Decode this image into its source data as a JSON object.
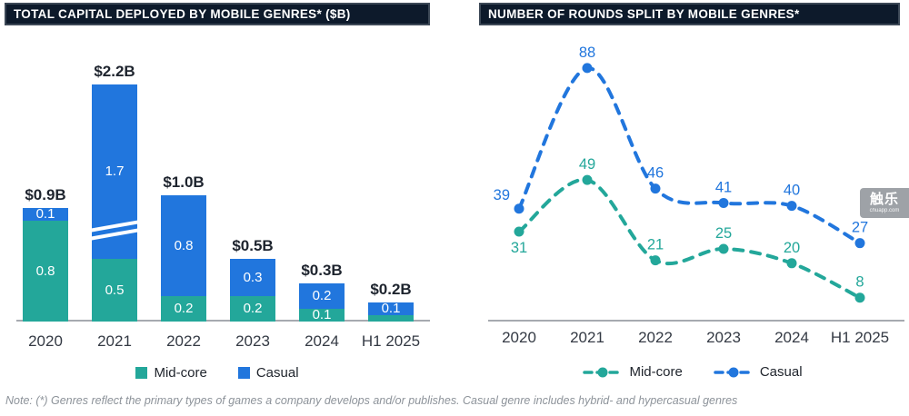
{
  "note": "Note: (*) Genres reflect the primary types of games a company develops and/or publishes. Casual genre includes hybrid- and hypercasual genres",
  "watermark": {
    "text": "触乐",
    "subtext": "chuapp.com"
  },
  "colors": {
    "mid_core": "#23a79a",
    "casual": "#2176dd",
    "title_bg": "#0d1a2b",
    "axis": "#a6aab0",
    "dark_text": "#1e242e",
    "note_gray": "#8d939a"
  },
  "left_chart": {
    "title": "TOTAL CAPITAL DEPLOYED BY MOBILE GENRES* ($B)"
  },
  "right_chart": {
    "title": "NUMBER OF ROUNDS SPLIT BY MOBILE GENRES*"
  },
  "chart_data": [
    {
      "type": "bar",
      "stacked": true,
      "title": "TOTAL CAPITAL DEPLOYED BY MOBILE GENRES* ($B)",
      "categories": [
        "2020",
        "2021",
        "2022",
        "2023",
        "2024",
        "H1 2025"
      ],
      "series": [
        {
          "name": "Mid-core",
          "color": "#23a79a",
          "values": [
            0.8,
            0.5,
            0.2,
            0.2,
            0.1,
            0.05
          ],
          "labels": [
            "0.8",
            "0.5",
            "0.2",
            "0.2",
            "0.1",
            ""
          ]
        },
        {
          "name": "Casual",
          "color": "#2176dd",
          "values": [
            0.1,
            1.7,
            0.8,
            0.3,
            0.2,
            0.1
          ],
          "labels": [
            "0.1",
            "1.7",
            "0.8",
            "0.3",
            "0.2",
            "0.1"
          ]
        }
      ],
      "totals": [
        "$0.9B",
        "$2.2B",
        "$1.0B",
        "$0.5B",
        "$0.3B",
        "$0.2B"
      ],
      "unit": "$B",
      "axis_break_on": "2021",
      "grid": false,
      "legend_position": "bottom"
    },
    {
      "type": "line",
      "style": "dashed-with-markers",
      "title": "NUMBER OF ROUNDS SPLIT BY MOBILE GENRES*",
      "categories": [
        "2020",
        "2021",
        "2022",
        "2023",
        "2024",
        "H1 2025"
      ],
      "series": [
        {
          "name": "Mid-core",
          "color": "#23a79a",
          "values": [
            31,
            49,
            21,
            25,
            20,
            8
          ]
        },
        {
          "name": "Casual",
          "color": "#2176dd",
          "values": [
            39,
            88,
            46,
            41,
            40,
            27
          ]
        }
      ],
      "ylim": [
        0,
        95
      ],
      "grid": false,
      "legend_position": "bottom"
    }
  ]
}
